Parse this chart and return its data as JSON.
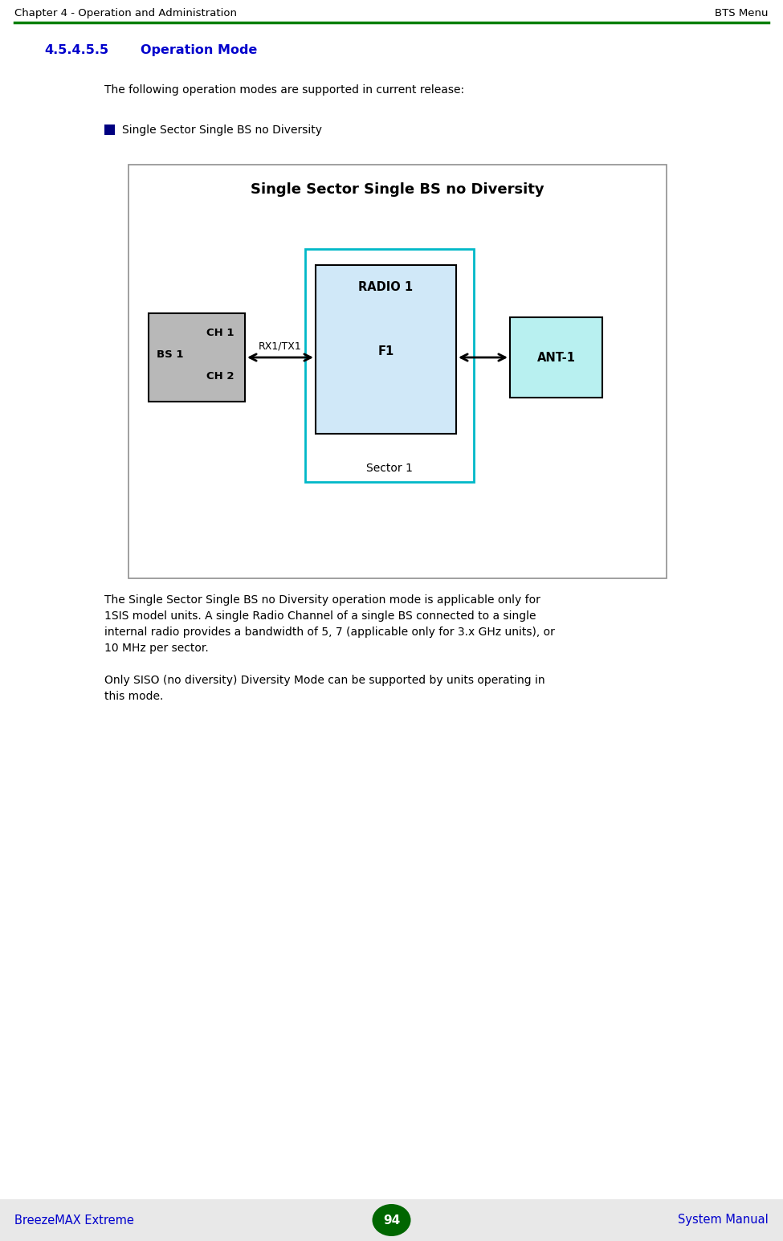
{
  "header_left": "Chapter 4 - Operation and Administration",
  "header_right": "BTS Menu",
  "header_line_color": "#008000",
  "section_number": "4.5.4.5.5",
  "section_title": "Operation Mode",
  "section_color": "#0000CC",
  "body_text1": "The following operation modes are supported in current release:",
  "bullet_text": "Single Sector Single BS no Diversity",
  "bullet_color": "#000080",
  "diagram_title": "Single Sector Single BS no Diversity",
  "bs_box_label1": "CH 1",
  "bs_box_label2": "BS 1",
  "bs_box_label3": "CH 2",
  "bs_box_color": "#B8B8B8",
  "radio_box_label1": "RADIO 1",
  "radio_box_label2": "F1",
  "radio_box_color": "#D0E8F8",
  "sector_border_color": "#00B8C8",
  "sector_label": "Sector 1",
  "ant_box_label": "ANT-1",
  "ant_box_color": "#B8F0F0",
  "arrow_label": "RX1/TX1",
  "diagram_bg": "#FFFFFF",
  "diagram_border": "#909090",
  "body_text2_lines": [
    "The Single Sector Single BS no Diversity operation mode is applicable only for",
    "1SIS model units. A single Radio Channel of a single BS connected to a single",
    "internal radio provides a bandwidth of 5, 7 (applicable only for 3.x GHz units), or",
    "10 MHz per sector."
  ],
  "body_text3_lines": [
    "Only SISO (no diversity) Diversity Mode can be supported by units operating in",
    "this mode."
  ],
  "footer_left": "BreezeMAX Extreme",
  "footer_center": "94",
  "footer_right": "System Manual",
  "footer_color": "#0000CC",
  "footer_badge_color": "#006600",
  "page_bg": "#E8E8E8",
  "content_bg": "#FFFFFF"
}
